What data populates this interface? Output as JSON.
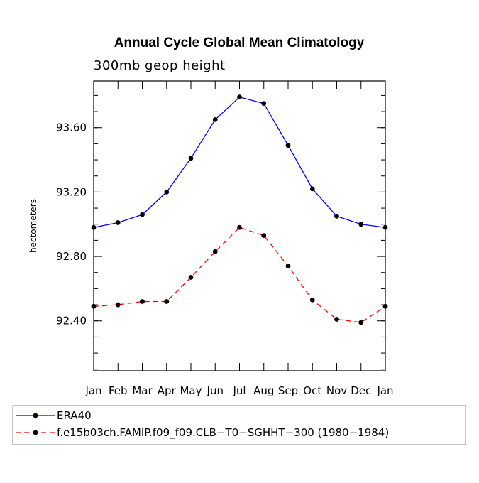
{
  "chart_data": {
    "type": "line",
    "title": "Annual Cycle Global Mean Climatology",
    "subtitle": "300mb geop height",
    "xlabel": "",
    "ylabel": "hectometers",
    "categories": [
      "Jan",
      "Feb",
      "Mar",
      "Apr",
      "May",
      "Jun",
      "Jul",
      "Aug",
      "Sep",
      "Oct",
      "Nov",
      "Dec",
      "Jan"
    ],
    "ylim": [
      92.09,
      93.89
    ],
    "yticks": [
      92.4,
      92.8,
      93.2,
      93.6
    ],
    "ytick_labels": [
      "92.40",
      "92.80",
      "93.20",
      "93.60"
    ],
    "yminor_step": 0.1,
    "grid": false,
    "legend_position": "bottom",
    "series": [
      {
        "name": "ERA40",
        "color": "#0000ff",
        "dash": "solid",
        "marker": "circle",
        "values": [
          92.98,
          93.01,
          93.06,
          93.2,
          93.41,
          93.65,
          93.79,
          93.75,
          93.49,
          93.22,
          93.05,
          93.0,
          92.98
        ]
      },
      {
        "name": "f.e15b03ch.FAMIP.f09_f09.CLB−T0−SGHHT−300 (1980−1984)",
        "color": "#ff0000",
        "dash": "dashed",
        "marker": "circle",
        "values": [
          92.49,
          92.5,
          92.52,
          92.52,
          92.67,
          92.83,
          92.98,
          92.93,
          92.74,
          92.53,
          92.41,
          92.39,
          92.49
        ]
      }
    ]
  }
}
